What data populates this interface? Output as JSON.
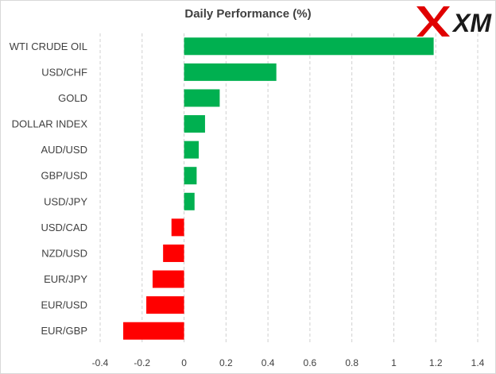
{
  "chart_data": {
    "type": "bar",
    "orientation": "horizontal",
    "title": "Daily Performance  (%)",
    "categories": [
      "WTI CRUDE OIL",
      "USD/CHF",
      "GOLD",
      "DOLLAR INDEX",
      "AUD/USD",
      "GBP/USD",
      "USD/JPY",
      "USD/CAD",
      "NZD/USD",
      "EUR/JPY",
      "EUR/USD",
      "EUR/GBP"
    ],
    "values": [
      1.19,
      0.44,
      0.17,
      0.1,
      0.07,
      0.06,
      0.05,
      -0.06,
      -0.1,
      -0.15,
      -0.18,
      -0.29
    ],
    "xlim": [
      -0.4,
      1.4
    ],
    "xticks": [
      -0.4,
      -0.2,
      0,
      0.2,
      0.4,
      0.6,
      0.8,
      1,
      1.2,
      1.4
    ],
    "xtick_labels": [
      "-0.4",
      "-0.2",
      "0",
      "0.2",
      "0.4",
      "0.6",
      "0.8",
      "1",
      "1.2",
      "1.4"
    ],
    "positive_color": "#00b050",
    "negative_color": "#ff0000",
    "gridlines": "vertical-dashed",
    "legend": "none"
  },
  "logo": {
    "icon": "xm-logo-icon",
    "text": "XM",
    "color": "#e00000",
    "text_color": "#1a1a1a"
  }
}
